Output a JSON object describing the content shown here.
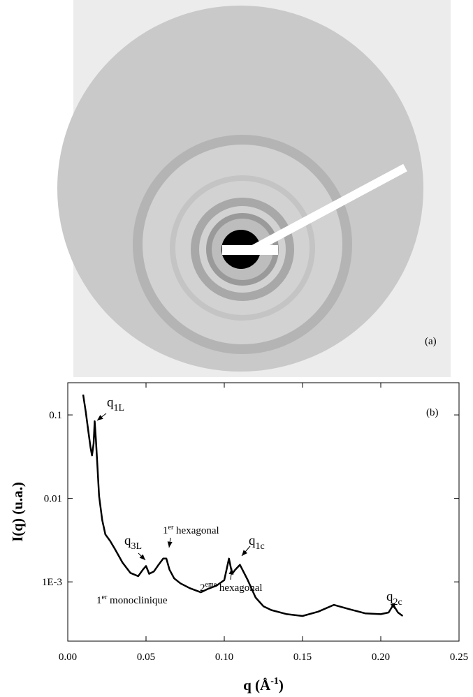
{
  "panel_a_label": "(a)",
  "chart_data": {
    "type": "line",
    "ylabel": "I(q) (u.a.)",
    "xlabel": {
      "text": "q (Å",
      "sup": "-1",
      "tail": ")"
    },
    "log_y": true,
    "color": "#000000",
    "x": [
      0.0098,
      0.0115,
      0.013,
      0.0145,
      0.0155,
      0.0165,
      0.0172,
      0.018,
      0.019,
      0.02,
      0.022,
      0.024,
      0.027,
      0.03,
      0.035,
      0.04,
      0.045,
      0.048,
      0.05,
      0.052,
      0.055,
      0.058,
      0.061,
      0.063,
      0.065,
      0.068,
      0.072,
      0.078,
      0.085,
      0.09,
      0.095,
      0.1,
      0.103,
      0.105,
      0.107,
      0.11,
      0.115,
      0.12,
      0.125,
      0.13,
      0.14,
      0.15,
      0.16,
      0.17,
      0.18,
      0.19,
      0.2,
      0.205,
      0.208,
      0.211,
      0.214
    ],
    "values": [
      0.175,
      0.108,
      0.0667,
      0.0412,
      0.0327,
      0.0454,
      0.084,
      0.05,
      0.0231,
      0.0107,
      0.0055,
      0.0037,
      0.0031,
      0.0025,
      0.0017,
      0.00128,
      0.00117,
      0.0014,
      0.00155,
      0.00125,
      0.00133,
      0.0016,
      0.0019,
      0.0019,
      0.0014,
      0.0011,
      0.00096,
      0.00084,
      0.00075,
      0.00083,
      0.0009,
      0.00105,
      0.0019,
      0.00125,
      0.0014,
      0.0016,
      0.00105,
      0.00065,
      0.00051,
      0.00046,
      0.00041,
      0.00039,
      0.00044,
      0.00053,
      0.00047,
      0.00042,
      0.00041,
      0.00043,
      0.00053,
      0.00043,
      0.00039
    ],
    "xlim": [
      0,
      0.25
    ],
    "xticks": [
      {
        "value": 0,
        "label": "0.00"
      },
      0.05,
      {
        "value": 0.1,
        "label": "0.10"
      },
      0.15,
      {
        "value": 0.2,
        "label": "0.20"
      },
      0.25
    ],
    "ylim": [
      0.000195,
      0.243
    ],
    "yticks": [
      {
        "value": 0.001,
        "label": "1E-3"
      },
      0.01,
      0.1
    ],
    "annotations": [
      {
        "text": "q",
        "sub": "1L"
      },
      {
        "text": "q",
        "sub": "3L"
      },
      {
        "text": "1",
        "sup": "er",
        "tail": " hexagonal"
      },
      {
        "text": "q",
        "sub": "1c"
      },
      {
        "text": "1",
        "sup": "er",
        "tail": " monoclinique"
      },
      {
        "text": "2",
        "sup": "eme",
        "tail": " hexagonal"
      },
      {
        "text": "q",
        "sub": "2c"
      },
      {
        "text": "(b)"
      }
    ]
  }
}
